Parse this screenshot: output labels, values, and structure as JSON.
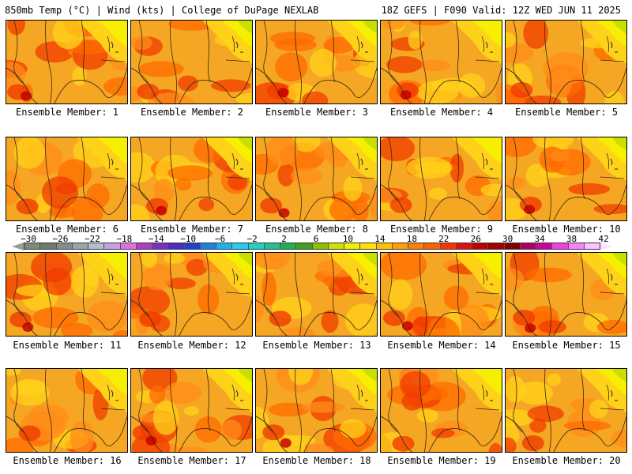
{
  "header": {
    "title_left": "850mb Temp (°C) | Wind (kts) | College of DuPage NEXLAB",
    "title_right": "18Z GEFS | F090 Valid: 12Z WED JUN 11 2025"
  },
  "panels": [
    {
      "label": "Ensemble Member: 1"
    },
    {
      "label": "Ensemble Member: 2"
    },
    {
      "label": "Ensemble Member: 3"
    },
    {
      "label": "Ensemble Member: 4"
    },
    {
      "label": "Ensemble Member: 5"
    },
    {
      "label": "Ensemble Member: 6"
    },
    {
      "label": "Ensemble Member: 7"
    },
    {
      "label": "Ensemble Member: 8"
    },
    {
      "label": "Ensemble Member: 9"
    },
    {
      "label": "Ensemble Member: 10"
    },
    {
      "label": "Ensemble Member: 11"
    },
    {
      "label": "Ensemble Member: 12"
    },
    {
      "label": "Ensemble Member: 13"
    },
    {
      "label": "Ensemble Member: 14"
    },
    {
      "label": "Ensemble Member: 15"
    },
    {
      "label": "Ensemble Member: 16"
    },
    {
      "label": "Ensemble Member: 17"
    },
    {
      "label": "Ensemble Member: 18"
    },
    {
      "label": "Ensemble Member: 19"
    },
    {
      "label": "Ensemble Member: 20"
    }
  ],
  "colorbar": {
    "labels": [
      "−30",
      "−26",
      "−22",
      "−18",
      "−14",
      "−10",
      "−6",
      "−2",
      "2",
      "6",
      "10",
      "14",
      "18",
      "22",
      "26",
      "30",
      "34",
      "38",
      "42"
    ],
    "colors": [
      "#7b8a7b",
      "#6e7b6e",
      "#7f8f8f",
      "#9aa5a5",
      "#b0c0d0",
      "#c8a0e0",
      "#e070e0",
      "#b040c0",
      "#7a30c0",
      "#4a30c0",
      "#2040d0",
      "#2080e0",
      "#20b0f0",
      "#20d0f0",
      "#20d0c0",
      "#20c090",
      "#20b050",
      "#40a020",
      "#90c000",
      "#d0e000",
      "#f0f000",
      "#ffe000",
      "#ffc000",
      "#ffa000",
      "#ff8000",
      "#ff6000",
      "#ff3000",
      "#e01010",
      "#c00000",
      "#a00000",
      "#800000",
      "#b00060",
      "#d000a0",
      "#f040e0",
      "#ff80ff",
      "#ffc0ff"
    ]
  },
  "map_colors": {
    "background": "#f5a623",
    "light": "#ffd21a",
    "yellow": "#f7ef00",
    "green": "#c8e000",
    "orange": "#ff8c1a",
    "dark": "#ff6a00",
    "red": "#f03c00",
    "crimson": "#c80000"
  }
}
